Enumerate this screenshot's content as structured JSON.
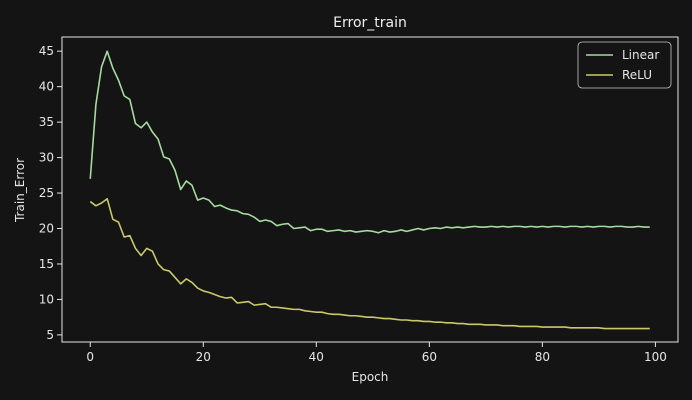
{
  "chart_data": {
    "type": "line",
    "title": "Error_train",
    "xlabel": "Epoch",
    "ylabel": "Train_Error",
    "xlim": [
      -5,
      104
    ],
    "ylim": [
      4,
      47
    ],
    "xticks": [
      0,
      20,
      40,
      60,
      80,
      100
    ],
    "yticks": [
      5,
      10,
      15,
      20,
      25,
      30,
      35,
      40,
      45
    ],
    "grid": false,
    "legend_position": "upper-right",
    "series": [
      {
        "name": "Linear",
        "color": "#a6dba0",
        "values": [
          27.0,
          37.5,
          42.8,
          45.0,
          42.6,
          40.9,
          38.7,
          38.2,
          34.8,
          34.2,
          35.0,
          33.6,
          32.6,
          30.1,
          29.8,
          28.2,
          25.5,
          26.7,
          26.1,
          24.0,
          24.3,
          24.0,
          23.1,
          23.3,
          22.9,
          22.6,
          22.5,
          22.1,
          22.0,
          21.6,
          21.0,
          21.2,
          21.0,
          20.4,
          20.6,
          20.7,
          20.0,
          20.1,
          20.2,
          19.7,
          19.9,
          19.9,
          19.6,
          19.7,
          19.8,
          19.6,
          19.7,
          19.5,
          19.6,
          19.7,
          19.6,
          19.4,
          19.7,
          19.5,
          19.6,
          19.8,
          19.6,
          19.8,
          20.0,
          19.8,
          20.0,
          20.1,
          20.0,
          20.2,
          20.1,
          20.2,
          20.1,
          20.2,
          20.3,
          20.2,
          20.2,
          20.3,
          20.2,
          20.3,
          20.2,
          20.3,
          20.3,
          20.2,
          20.3,
          20.2,
          20.3,
          20.2,
          20.3,
          20.3,
          20.2,
          20.3,
          20.3,
          20.2,
          20.3,
          20.2,
          20.3,
          20.3,
          20.2,
          20.3,
          20.3,
          20.2,
          20.2,
          20.3,
          20.2,
          20.2
        ]
      },
      {
        "name": "ReLU",
        "color": "#c9c96a",
        "values": [
          23.8,
          23.2,
          23.6,
          24.2,
          21.3,
          20.9,
          18.8,
          19.0,
          17.2,
          16.2,
          17.2,
          16.8,
          15.0,
          14.2,
          14.0,
          13.1,
          12.2,
          12.9,
          12.4,
          11.6,
          11.2,
          11.0,
          10.7,
          10.4,
          10.2,
          10.3,
          9.5,
          9.6,
          9.7,
          9.2,
          9.3,
          9.4,
          8.9,
          8.9,
          8.8,
          8.7,
          8.6,
          8.6,
          8.4,
          8.3,
          8.2,
          8.2,
          8.0,
          7.9,
          7.9,
          7.8,
          7.7,
          7.7,
          7.6,
          7.5,
          7.5,
          7.4,
          7.3,
          7.3,
          7.2,
          7.1,
          7.1,
          7.0,
          7.0,
          6.9,
          6.9,
          6.8,
          6.8,
          6.7,
          6.7,
          6.6,
          6.6,
          6.5,
          6.5,
          6.5,
          6.4,
          6.4,
          6.4,
          6.3,
          6.3,
          6.3,
          6.2,
          6.2,
          6.2,
          6.2,
          6.1,
          6.1,
          6.1,
          6.1,
          6.1,
          6.0,
          6.0,
          6.0,
          6.0,
          6.0,
          6.0,
          5.9,
          5.9,
          5.9,
          5.9,
          5.9,
          5.9,
          5.9,
          5.9,
          5.9
        ]
      }
    ]
  }
}
